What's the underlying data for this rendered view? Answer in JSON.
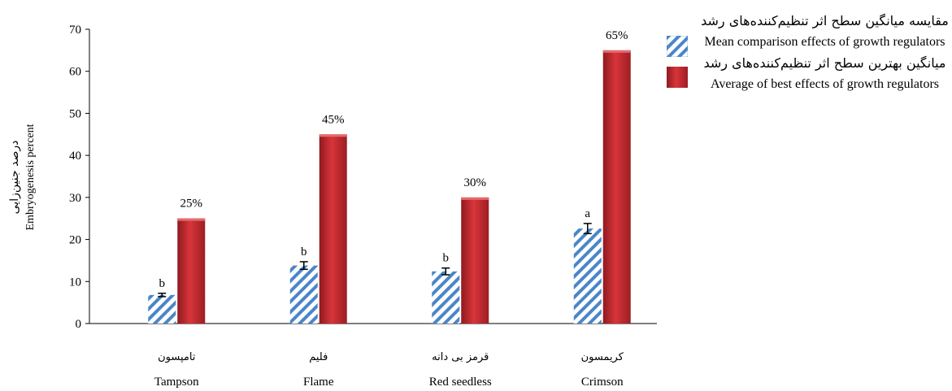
{
  "chart_data": {
    "type": "bar",
    "ylabel_fa": "درصد جنین‌زایی",
    "ylabel_en": "Embryogenesis percent",
    "ylim": [
      0,
      70
    ],
    "yticks": [
      0,
      10,
      20,
      30,
      40,
      50,
      60,
      70
    ],
    "categories": [
      {
        "fa": "تامپسون",
        "en": "Tampson"
      },
      {
        "fa": "فلیم",
        "en": "Flame"
      },
      {
        "fa": "قرمز بی دانه",
        "en": "Red seedless"
      },
      {
        "fa": "کریمسون",
        "en": "Crimson"
      }
    ],
    "series": [
      {
        "legend_fa": "مقایسه میانگین سطح اثر تنظیم‌کننده‌های رشد",
        "legend_en": "Mean comparison effects of growth regulators",
        "color": "#4a86c8",
        "pattern": "diagonal-hatch",
        "values": [
          6.8,
          13.8,
          12.4,
          22.6
        ],
        "errors": [
          0.4,
          0.9,
          0.8,
          1.2
        ],
        "labels": [
          "b",
          "b",
          "b",
          "a"
        ]
      },
      {
        "legend_fa": "میانگین بهترین سطح اثر تنظیم‌کننده‌های رشد",
        "legend_en": "Average of best effects of growth regulators",
        "color": "#c0272d",
        "pattern": "solid-gradient",
        "values": [
          25,
          45,
          30,
          65
        ],
        "labels": [
          "25%",
          "45%",
          "30%",
          "65%"
        ]
      }
    ]
  }
}
